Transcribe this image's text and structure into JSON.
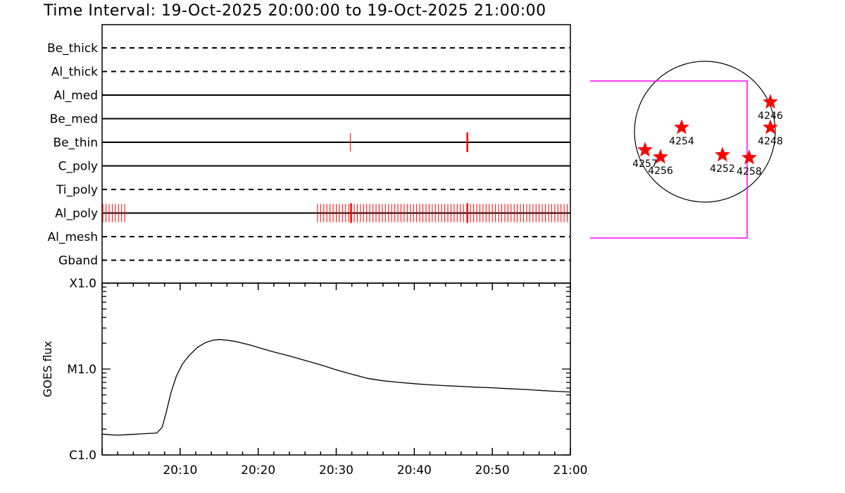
{
  "title": "Time Interval: 19-Oct-2025 20:00:00 to 19-Oct-2025 21:00:00",
  "chart_data": [
    {
      "type": "timeline",
      "filters": [
        {
          "name": "Be_thick",
          "style": "dashed",
          "events": []
        },
        {
          "name": "Al_thick",
          "style": "dashed",
          "events": []
        },
        {
          "name": "Al_med",
          "style": "solid",
          "events": []
        },
        {
          "name": "Be_med",
          "style": "solid",
          "events": []
        },
        {
          "name": "Be_thin",
          "style": "solid",
          "events": [
            {
              "t": 31.8,
              "major": false
            },
            {
              "t": 46.8,
              "major": true
            }
          ]
        },
        {
          "name": "C_poly",
          "style": "solid",
          "events": []
        },
        {
          "name": "Ti_poly",
          "style": "dashed",
          "events": []
        },
        {
          "name": "Al_poly",
          "style": "solid",
          "events": [
            {
              "t": 0.1
            },
            {
              "t": 0.5
            },
            {
              "t": 0.9
            },
            {
              "t": 1.3
            },
            {
              "t": 1.7
            },
            {
              "t": 2.1
            },
            {
              "t": 2.5
            },
            {
              "t": 2.9
            },
            {
              "t": 27.6
            },
            {
              "t": 28.0
            },
            {
              "t": 28.4
            },
            {
              "t": 28.8
            },
            {
              "t": 29.2
            },
            {
              "t": 29.6
            },
            {
              "t": 30.0
            },
            {
              "t": 30.4
            },
            {
              "t": 30.8
            },
            {
              "t": 31.2
            },
            {
              "t": 31.6
            },
            {
              "t": 31.9,
              "major": true
            },
            {
              "t": 32.3
            },
            {
              "t": 32.7
            },
            {
              "t": 33.1
            },
            {
              "t": 33.5
            },
            {
              "t": 33.9
            },
            {
              "t": 34.3
            },
            {
              "t": 34.7
            },
            {
              "t": 35.1
            },
            {
              "t": 35.5
            },
            {
              "t": 35.9
            },
            {
              "t": 36.3
            },
            {
              "t": 36.7
            },
            {
              "t": 37.1
            },
            {
              "t": 37.5
            },
            {
              "t": 37.9
            },
            {
              "t": 38.3
            },
            {
              "t": 38.7
            },
            {
              "t": 39.1
            },
            {
              "t": 39.5
            },
            {
              "t": 39.9
            },
            {
              "t": 40.3
            },
            {
              "t": 40.7
            },
            {
              "t": 41.1
            },
            {
              "t": 41.5
            },
            {
              "t": 41.9
            },
            {
              "t": 42.3
            },
            {
              "t": 42.7
            },
            {
              "t": 43.1
            },
            {
              "t": 43.5
            },
            {
              "t": 43.9
            },
            {
              "t": 44.3
            },
            {
              "t": 44.7
            },
            {
              "t": 45.1
            },
            {
              "t": 45.5
            },
            {
              "t": 45.9
            },
            {
              "t": 46.3
            },
            {
              "t": 46.8,
              "major": true
            },
            {
              "t": 47.2
            },
            {
              "t": 47.6
            },
            {
              "t": 48.0
            },
            {
              "t": 48.4
            },
            {
              "t": 48.8
            },
            {
              "t": 49.2
            },
            {
              "t": 49.6
            },
            {
              "t": 50.0
            },
            {
              "t": 50.4
            },
            {
              "t": 50.8
            },
            {
              "t": 51.2
            },
            {
              "t": 51.6
            },
            {
              "t": 52.0
            },
            {
              "t": 52.4
            },
            {
              "t": 52.8
            },
            {
              "t": 53.2
            },
            {
              "t": 53.6
            },
            {
              "t": 54.0
            },
            {
              "t": 54.4
            },
            {
              "t": 54.8
            },
            {
              "t": 55.2
            },
            {
              "t": 55.6
            },
            {
              "t": 56.0
            },
            {
              "t": 56.4
            },
            {
              "t": 56.8
            },
            {
              "t": 57.2
            },
            {
              "t": 57.6
            },
            {
              "t": 58.0
            },
            {
              "t": 58.4
            },
            {
              "t": 58.8
            },
            {
              "t": 59.2
            },
            {
              "t": 59.6
            }
          ]
        },
        {
          "name": "Al_mesh",
          "style": "dashed",
          "events": []
        },
        {
          "name": "Gband",
          "style": "dashed",
          "events": []
        }
      ],
      "x_unit": "minutes after 20:00",
      "xlim": [
        0,
        60
      ],
      "event_color": "#ff0000"
    },
    {
      "type": "line",
      "ylabel": "GOES flux",
      "yscale": "log",
      "ylim": [
        1e-06,
        0.0001
      ],
      "yticks": [
        {
          "value": 1e-06,
          "label": "C1.0"
        },
        {
          "value": 1e-05,
          "label": "M1.0"
        },
        {
          "value": 0.0001,
          "label": "X1.0"
        }
      ],
      "xticks": [
        {
          "value": 10,
          "label": "20:10"
        },
        {
          "value": 20,
          "label": "20:20"
        },
        {
          "value": 30,
          "label": "20:30"
        },
        {
          "value": 40,
          "label": "20:40"
        },
        {
          "value": 50,
          "label": "20:50"
        },
        {
          "value": 60,
          "label": "21:00"
        }
      ],
      "xlim": [
        0,
        60
      ],
      "series": [
        {
          "x": [
            0,
            1,
            2,
            3,
            4,
            5,
            6,
            7,
            7.7,
            8.2,
            8.8,
            9.5,
            10.3,
            11.2,
            12.2,
            13.2,
            14.2,
            15.0,
            16.0,
            17.0,
            18.0,
            19.0,
            20.0,
            22.0,
            24.0,
            26.0,
            28.0,
            30.0,
            32.0,
            34.0,
            36.0,
            38.0,
            40.0,
            42.0,
            44.0,
            46.0,
            48.0,
            50.0,
            52.0,
            54.0,
            56.0,
            58.0,
            60.0
          ],
          "y": [
            1.75e-06,
            1.72e-06,
            1.7e-06,
            1.72e-06,
            1.74e-06,
            1.76e-06,
            1.78e-06,
            1.8e-06,
            2.1e-06,
            3.1e-06,
            5.2e-06,
            8.2e-06,
            1.15e-05,
            1.45e-05,
            1.78e-05,
            2.02e-05,
            2.17e-05,
            2.2e-05,
            2.17e-05,
            2.1e-05,
            2e-05,
            1.9e-05,
            1.78e-05,
            1.58e-05,
            1.42e-05,
            1.26e-05,
            1.12e-05,
            9.8e-06,
            8.7e-06,
            7.8e-06,
            7.3e-06,
            7e-06,
            6.75e-06,
            6.55e-06,
            6.4e-06,
            6.28e-06,
            6.15e-06,
            6.05e-06,
            5.92e-06,
            5.8e-06,
            5.65e-06,
            5.52e-06,
            5.4e-06
          ]
        }
      ]
    },
    {
      "type": "scatter",
      "marker": "star",
      "marker_color": "#ff0000",
      "disk": true,
      "fov_box_color": "#ff00ff",
      "points": [
        {
          "label": "4246",
          "x": 0.93,
          "y": 0.42
        },
        {
          "label": "4248",
          "x": 0.93,
          "y": 0.06
        },
        {
          "label": "4254",
          "x": -0.33,
          "y": 0.06
        },
        {
          "label": "4257",
          "x": -0.85,
          "y": -0.26
        },
        {
          "label": "4256",
          "x": -0.63,
          "y": -0.36
        },
        {
          "label": "4252",
          "x": 0.25,
          "y": -0.33
        },
        {
          "label": "4258",
          "x": 0.63,
          "y": -0.37
        }
      ]
    }
  ]
}
